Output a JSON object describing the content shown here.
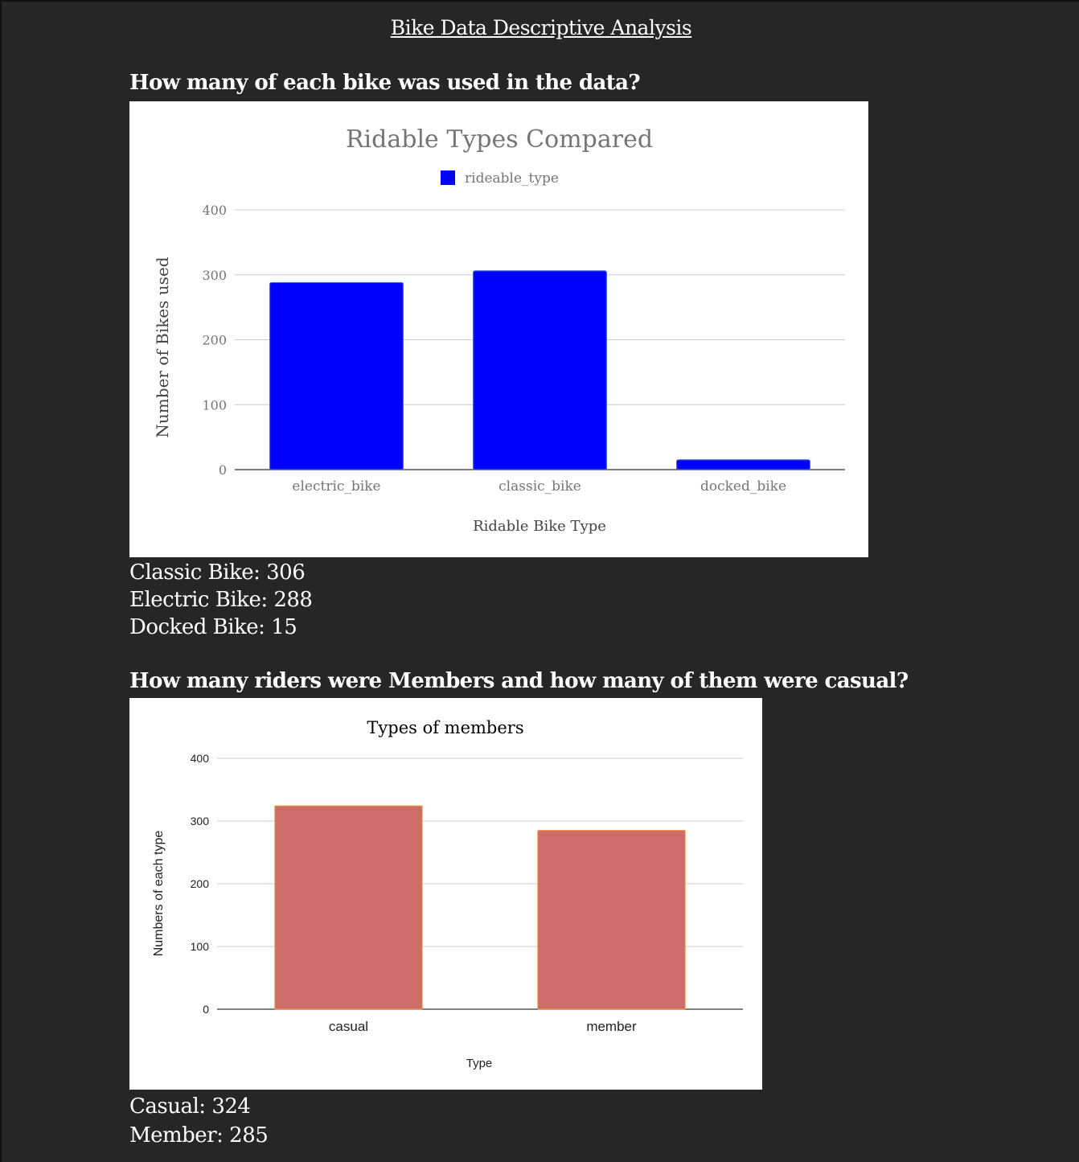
{
  "page": {
    "title": "Bike Data Descriptive Analysis"
  },
  "section1": {
    "question": "How many of each bike was used in the data?",
    "stats": [
      "Classic Bike: 306",
      "Electric Bike: 288",
      "Docked Bike: 15"
    ]
  },
  "section2": {
    "question": "How many riders were Members and how many of them were casual?",
    "stats": [
      "Casual: 324",
      "Member: 285"
    ]
  },
  "chart_data": [
    {
      "type": "bar",
      "title": "Ridable Types Compared",
      "categories": [
        "electric_bike",
        "classic_bike",
        "docked_bike"
      ],
      "series": [
        {
          "name": "rideable_type",
          "values": [
            288,
            306,
            15
          ]
        }
      ],
      "xlabel": "Ridable Bike Type",
      "ylabel": "Number of Bikes used",
      "ylim": [
        0,
        400
      ],
      "yticks": [
        0,
        100,
        200,
        300,
        400
      ],
      "grid": true,
      "legend": "top-center",
      "colors": {
        "bar": "#0000ff",
        "bar_edge": "#3a5fcd"
      }
    },
    {
      "type": "bar",
      "title": "Types of members",
      "categories": [
        "casual",
        "member"
      ],
      "values": [
        324,
        285
      ],
      "xlabel": "Type",
      "ylabel": "Numbers of each type",
      "ylim": [
        0,
        400
      ],
      "yticks": [
        0,
        100,
        200,
        300,
        400
      ],
      "grid": true,
      "legend": "none",
      "colors": {
        "bar": "#cd6c68",
        "bar_edge": "#e69138"
      }
    }
  ]
}
